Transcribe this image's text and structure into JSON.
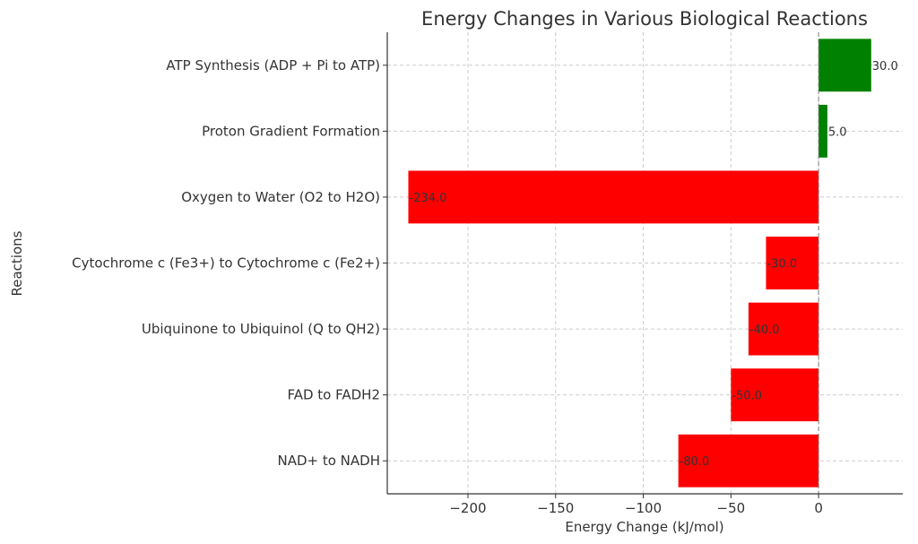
{
  "chart_data": {
    "type": "bar",
    "orientation": "horizontal",
    "title": "Energy Changes in Various Biological Reactions",
    "xlabel": "Energy Change (kJ/mol)",
    "ylabel": "Reactions",
    "xlim": [
      -246,
      48
    ],
    "xticks": [
      -200,
      -150,
      -100,
      -50,
      0
    ],
    "xtick_labels": [
      "−200",
      "−150",
      "−100",
      "−50",
      "0"
    ],
    "grid": true,
    "categories": [
      "NAD+ to NADH",
      "FAD to FADH2",
      "Ubiquinone to Ubiquinol (Q to QH2)",
      "Cytochrome c (Fe3+) to Cytochrome c (Fe2+)",
      "Oxygen to Water (O2 to H2O)",
      "Proton Gradient Formation",
      "ATP Synthesis (ADP + Pi to ATP)"
    ],
    "values": [
      -80.0,
      -50.0,
      -40.0,
      -30.0,
      -234.0,
      5.0,
      30.0
    ],
    "value_labels": [
      "-80.0",
      "-50.0",
      "-40.0",
      "-30.0",
      "-234.0",
      "5.0",
      "30.0"
    ],
    "colors": {
      "negative": "#ff0000",
      "positive": "#008000"
    }
  }
}
